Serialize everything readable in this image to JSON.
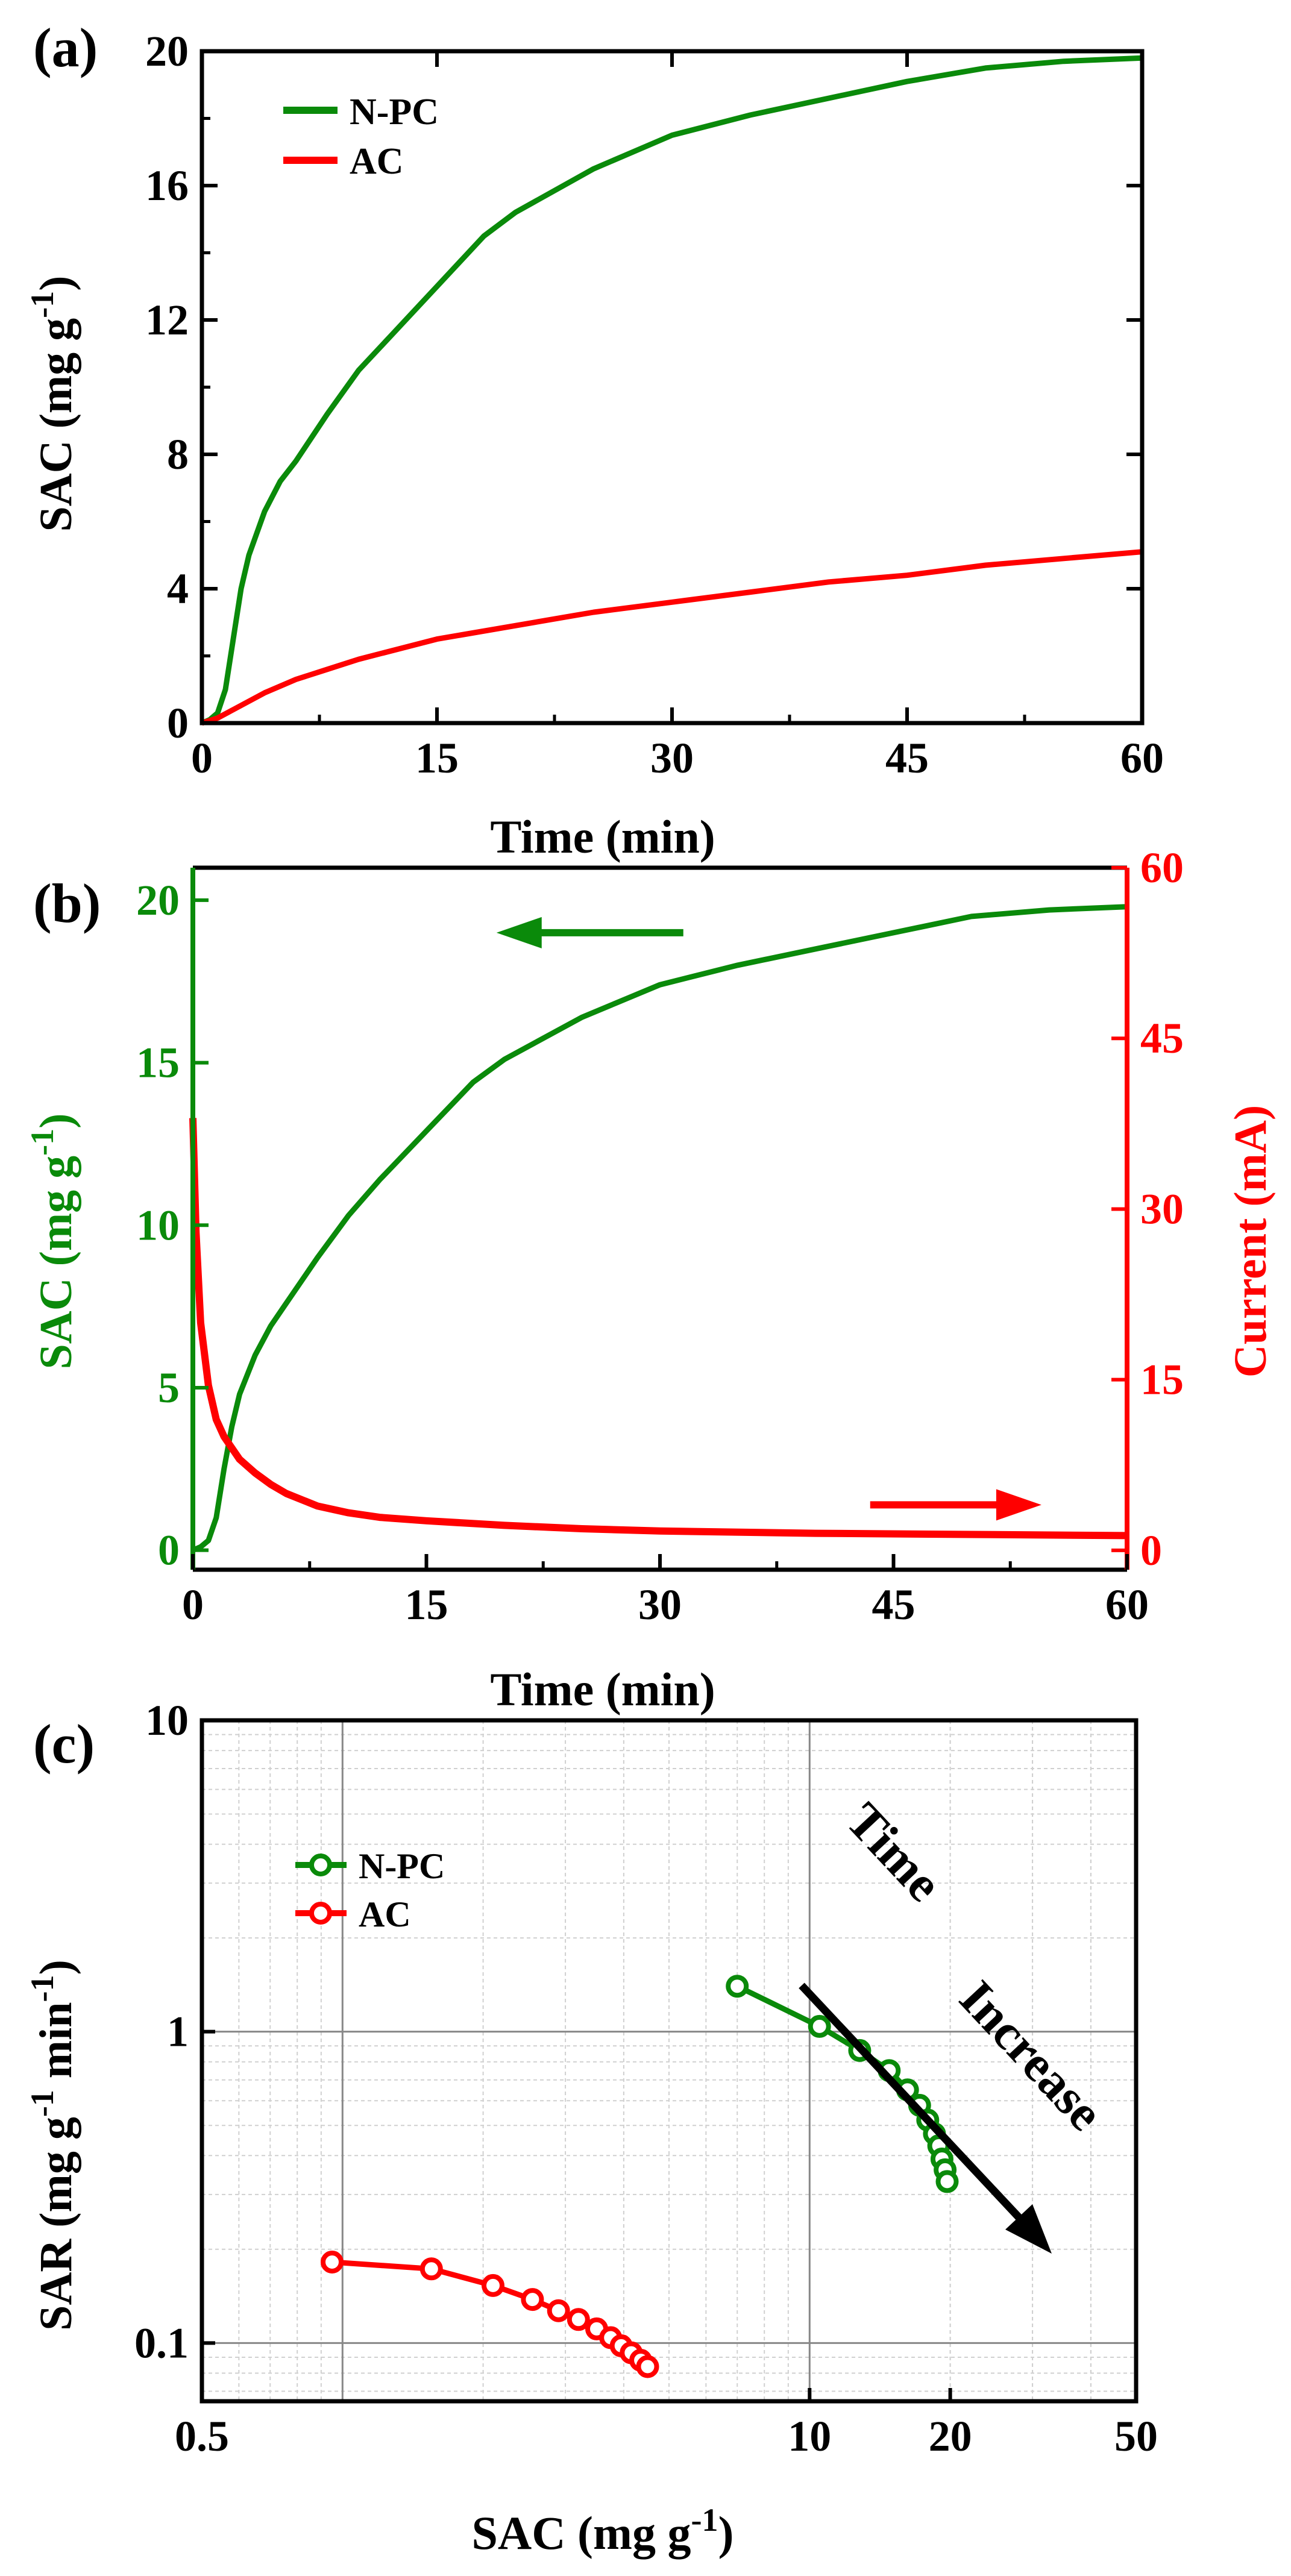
{
  "colors": {
    "npc": "#0a8a0a",
    "ac": "#ff0000",
    "axis": "#000000",
    "grid": "#888888",
    "minorgrid": "#d0d0d0"
  },
  "chart_data": [
    {
      "panel": "(a)",
      "type": "line",
      "xlabel": "Time (min)",
      "ylabel": "SAC (mg g-1)",
      "ylabel_main": "SAC (mg g",
      "ylabel_sup": "-1",
      "ylabel_end": ")",
      "xlim": [
        0,
        60
      ],
      "ylim": [
        0,
        20
      ],
      "xticks": [
        0,
        15,
        30,
        45,
        60
      ],
      "yticks": [
        0,
        4,
        8,
        12,
        16,
        20
      ],
      "legend": [
        "N-PC",
        "AC"
      ],
      "legend_position": "top-left",
      "series": [
        {
          "name": "N-PC",
          "color_key": "npc",
          "x": [
            0,
            0.5,
            1,
            1.5,
            2,
            2.5,
            3,
            4,
            5,
            6,
            8,
            10,
            12,
            15,
            18,
            20,
            25,
            30,
            35,
            40,
            45,
            50,
            55,
            60
          ],
          "y": [
            0,
            0.1,
            0.3,
            1.0,
            2.5,
            4.0,
            5.0,
            6.3,
            7.2,
            7.8,
            9.2,
            10.5,
            11.5,
            13.0,
            14.5,
            15.2,
            16.5,
            17.5,
            18.1,
            18.6,
            19.1,
            19.5,
            19.7,
            19.8
          ]
        },
        {
          "name": "AC",
          "color_key": "ac",
          "x": [
            0,
            1,
            2,
            4,
            6,
            8,
            10,
            15,
            20,
            25,
            30,
            35,
            40,
            45,
            50,
            55,
            60
          ],
          "y": [
            0,
            0.15,
            0.4,
            0.9,
            1.3,
            1.6,
            1.9,
            2.5,
            2.9,
            3.3,
            3.6,
            3.9,
            4.2,
            4.4,
            4.7,
            4.9,
            5.1
          ]
        }
      ]
    },
    {
      "panel": "(b)",
      "type": "line",
      "xlabel": "Time (min)",
      "ylabel_left": "SAC (mg g-1)",
      "ylabel_left_main": "SAC (mg g",
      "ylabel_left_sup": "-1",
      "ylabel_left_end": ")",
      "ylabel_right": "Current (mA)",
      "xlim": [
        0,
        60
      ],
      "ylim_left": [
        -0.6,
        21
      ],
      "ylim_right": [
        -1.7,
        60
      ],
      "xticks": [
        0,
        15,
        30,
        45,
        60
      ],
      "yticks_left": [
        0,
        5,
        10,
        15,
        20
      ],
      "yticks_right": [
        0,
        15,
        30,
        45,
        60
      ],
      "series": [
        {
          "name": "SAC",
          "axis": "left",
          "color_key": "npc",
          "x": [
            0,
            0.5,
            1,
            1.5,
            2,
            2.5,
            3,
            4,
            5,
            6,
            8,
            10,
            12,
            15,
            18,
            20,
            25,
            30,
            35,
            40,
            45,
            50,
            55,
            60
          ],
          "y": [
            0,
            0.1,
            0.3,
            1.0,
            2.5,
            3.8,
            4.8,
            6.0,
            6.9,
            7.6,
            9.0,
            10.3,
            11.4,
            12.9,
            14.4,
            15.1,
            16.4,
            17.4,
            18.0,
            18.5,
            19.0,
            19.5,
            19.7,
            19.8
          ]
        },
        {
          "name": "Current",
          "axis": "right",
          "color_key": "ac",
          "x": [
            0,
            0.2,
            0.5,
            1,
            1.5,
            2,
            3,
            4,
            5,
            6,
            8,
            10,
            12,
            15,
            20,
            25,
            30,
            40,
            50,
            60
          ],
          "y": [
            38,
            28,
            20,
            14.5,
            11.5,
            10,
            8,
            6.8,
            5.8,
            5.0,
            3.9,
            3.3,
            2.9,
            2.6,
            2.2,
            1.9,
            1.7,
            1.5,
            1.4,
            1.3
          ]
        }
      ],
      "arrows": [
        {
          "direction": "left",
          "color_key": "npc",
          "x_from": 31.5,
          "x_to": 19.5,
          "y": 19.0,
          "axis": "left"
        },
        {
          "direction": "right",
          "color_key": "ac",
          "x_from": 43.5,
          "x_to": 54.5,
          "y": 4.0,
          "axis": "right"
        }
      ]
    },
    {
      "panel": "(c)",
      "type": "scatter",
      "xscale": "log",
      "yscale": "log",
      "xlabel_main": "SAC (mg g",
      "xlabel_sup": "-1",
      "xlabel_end": ")",
      "ylabel_main": "SAR (mg g",
      "ylabel_sup1": "-1",
      "ylabel_mid": " min",
      "ylabel_sup2": "-1",
      "ylabel_end": ")",
      "xlim": [
        0.5,
        50
      ],
      "ylim": [
        0.065,
        10
      ],
      "xticks": [
        0.5,
        10,
        20,
        50
      ],
      "xtick_labels": [
        "0.5",
        "10",
        "20",
        "50"
      ],
      "yticks": [
        0.1,
        1,
        10
      ],
      "ytick_labels": [
        "0.1",
        "1",
        "10"
      ],
      "legend": [
        "N-PC",
        "AC"
      ],
      "legend_position": "top-left",
      "annotation": [
        "Time",
        "Increase"
      ],
      "series": [
        {
          "name": "N-PC",
          "color_key": "npc",
          "x": [
            7.0,
            10.5,
            12.8,
            14.8,
            16.2,
            17.2,
            17.9,
            18.5,
            18.9,
            19.2,
            19.5,
            19.7
          ],
          "y": [
            1.4,
            1.04,
            0.87,
            0.75,
            0.65,
            0.58,
            0.52,
            0.47,
            0.43,
            0.39,
            0.36,
            0.33
          ]
        },
        {
          "name": "AC",
          "color_key": "ac",
          "x": [
            0.95,
            1.55,
            2.1,
            2.55,
            2.9,
            3.2,
            3.5,
            3.75,
            3.95,
            4.15,
            4.35,
            4.5
          ],
          "y": [
            0.182,
            0.173,
            0.153,
            0.138,
            0.127,
            0.119,
            0.111,
            0.104,
            0.098,
            0.093,
            0.088,
            0.084
          ]
        }
      ]
    }
  ]
}
